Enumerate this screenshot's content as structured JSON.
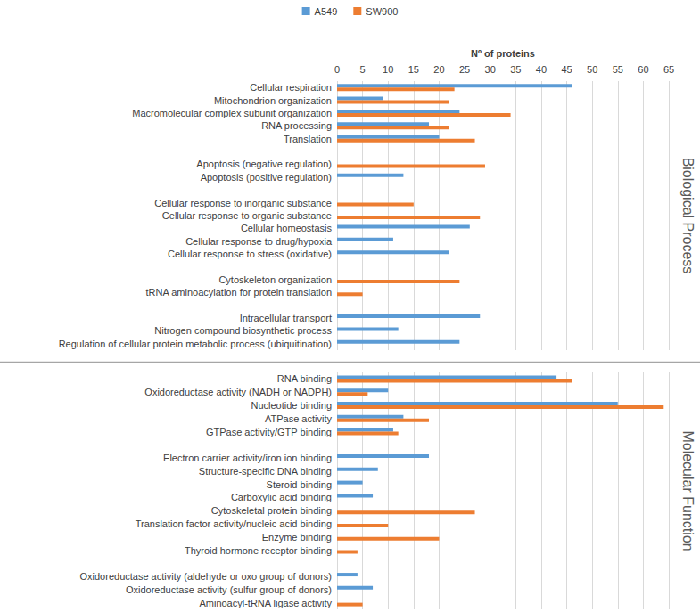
{
  "chart_data": [
    {
      "type": "bar",
      "orientation": "horizontal",
      "title": "Biological Process",
      "xlabel": "Nº of proteins",
      "categories": [
        "Cellular respiration",
        "Mitochondrion organization",
        "Macromolecular complex subunit organization",
        "RNA processing",
        "Translation",
        null,
        "Apoptosis (negative regulation)",
        "Apoptosis (positive regulation)",
        null,
        "Cellular response to inorganic substance",
        "Cellular response to organic substance",
        "Cellular homeostasis",
        "Cellular response to drug/hypoxia",
        "Cellular response to stress (oxidative)",
        null,
        "Cytoskeleton organization",
        "tRNA aminoacylation for protein translation",
        null,
        "Intracellular transport",
        "Nitrogen compound biosynthetic process",
        "Regulation of cellular protein metabolic process (ubiquitination)"
      ],
      "series": [
        {
          "name": "A549",
          "color": "#5b9bd5",
          "values": [
            46,
            9,
            24,
            18,
            20,
            null,
            null,
            13,
            null,
            null,
            null,
            26,
            11,
            22,
            null,
            null,
            null,
            null,
            28,
            12,
            24
          ]
        },
        {
          "name": "SW900",
          "color": "#ed7d31",
          "values": [
            23,
            22,
            34,
            22,
            27,
            null,
            29,
            null,
            null,
            15,
            28,
            null,
            null,
            null,
            null,
            24,
            5,
            null,
            null,
            null,
            null
          ]
        }
      ],
      "xlim": [
        0,
        65
      ],
      "xticks": [
        0,
        5,
        10,
        15,
        20,
        25,
        30,
        35,
        40,
        45,
        50,
        55,
        60,
        65
      ],
      "grid": true,
      "legend": "top"
    },
    {
      "type": "bar",
      "orientation": "horizontal",
      "title": "Molecular Function",
      "categories": [
        "RNA binding",
        "Oxidoreductase activity (NADH or NADPH)",
        "Nucleotide binding",
        "ATPase activity",
        "GTPase activity/GTP binding",
        null,
        "Electron carrier activity/iron ion binding",
        "Structure-specific DNA binding",
        "Steroid binding",
        "Carboxylic acid binding",
        "Cytoskeletal protein binding",
        "Translation factor activity/nucleic acid binding",
        "Enzyme binding",
        "Thyroid hormone receptor binding",
        null,
        "Oxidoreductase activity (aldehyde or oxo group of donors)",
        "Oxidoreductase activity (sulfur group of donors)",
        "Aminoacyl-tRNA ligase activity"
      ],
      "series": [
        {
          "name": "A549",
          "color": "#5b9bd5",
          "values": [
            43,
            10,
            55,
            13,
            11,
            null,
            18,
            8,
            5,
            7,
            null,
            null,
            null,
            null,
            null,
            4,
            7,
            null
          ]
        },
        {
          "name": "SW900",
          "color": "#ed7d31",
          "values": [
            46,
            6,
            64,
            18,
            12,
            null,
            null,
            null,
            null,
            null,
            27,
            10,
            20,
            4,
            null,
            null,
            null,
            5
          ]
        }
      ],
      "xlim": [
        0,
        65
      ],
      "xticks": [
        0,
        5,
        10,
        15,
        20,
        25,
        30,
        35,
        40,
        45,
        50,
        55,
        60,
        65
      ],
      "grid": true,
      "tick_labels": "y"
    }
  ]
}
